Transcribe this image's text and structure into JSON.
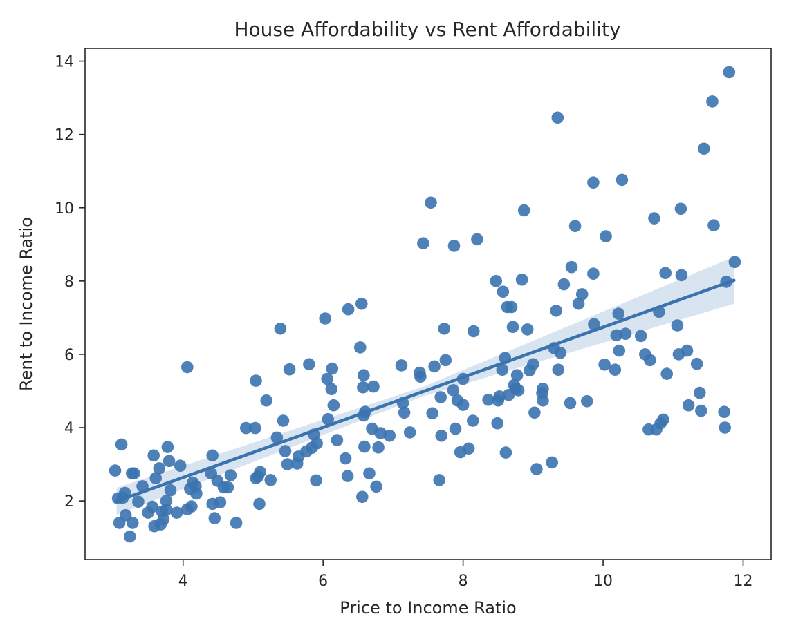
{
  "chart_data": {
    "type": "scatter",
    "title": "House Affordability vs Rent Affordability",
    "xlabel": "Price to Income Ratio",
    "ylabel": "Rent to Income Ratio",
    "xlim": [
      2.6,
      12.4
    ],
    "ylim": [
      0.4,
      14.35
    ],
    "xticks": [
      4,
      6,
      8,
      10,
      12
    ],
    "yticks": [
      2,
      4,
      6,
      8,
      10,
      12,
      14
    ],
    "grid": false,
    "point_color": "#3b73af",
    "regression_color": "#3b73af",
    "ci_color": "#c5d6ea",
    "regression": {
      "x": [
        3.05,
        11.87
      ],
      "y": [
        1.99,
        8.02
      ],
      "ci_lower": [
        1.62,
        7.38
      ],
      "ci_upper": [
        2.36,
        8.66
      ],
      "x_mid": 7.45,
      "ci_mid": [
        4.87,
        5.13
      ]
    },
    "points": [
      [
        3.03,
        2.83
      ],
      [
        3.07,
        2.07
      ],
      [
        3.09,
        1.4
      ],
      [
        3.12,
        3.54
      ],
      [
        3.14,
        2.09
      ],
      [
        3.17,
        2.22
      ],
      [
        3.18,
        1.61
      ],
      [
        3.24,
        1.03
      ],
      [
        3.27,
        2.75
      ],
      [
        3.3,
        2.75
      ],
      [
        3.28,
        1.4
      ],
      [
        3.36,
        1.98
      ],
      [
        3.42,
        2.4
      ],
      [
        3.5,
        1.68
      ],
      [
        3.56,
        1.84
      ],
      [
        3.58,
        3.24
      ],
      [
        3.61,
        2.62
      ],
      [
        3.59,
        1.31
      ],
      [
        3.66,
        2.89
      ],
      [
        3.7,
        1.71
      ],
      [
        3.72,
        1.5
      ],
      [
        3.76,
        2.0
      ],
      [
        3.78,
        3.47
      ],
      [
        3.8,
        3.09
      ],
      [
        3.82,
        2.29
      ],
      [
        3.76,
        1.76
      ],
      [
        3.68,
        1.36
      ],
      [
        3.91,
        1.68
      ],
      [
        3.96,
        2.96
      ],
      [
        4.06,
        5.65
      ],
      [
        4.06,
        1.77
      ],
      [
        4.1,
        2.33
      ],
      [
        4.14,
        2.5
      ],
      [
        4.12,
        1.85
      ],
      [
        4.19,
        2.2
      ],
      [
        4.18,
        2.4
      ],
      [
        4.4,
        2.75
      ],
      [
        4.42,
        3.24
      ],
      [
        4.42,
        1.92
      ],
      [
        4.45,
        1.53
      ],
      [
        4.49,
        2.55
      ],
      [
        4.53,
        1.96
      ],
      [
        4.58,
        2.37
      ],
      [
        4.64,
        2.37
      ],
      [
        4.68,
        2.7
      ],
      [
        4.76,
        1.4
      ],
      [
        4.9,
        3.99
      ],
      [
        5.03,
        3.99
      ],
      [
        5.04,
        5.28
      ],
      [
        5.04,
        2.62
      ],
      [
        5.07,
        2.67
      ],
      [
        5.1,
        2.79
      ],
      [
        5.09,
        1.92
      ],
      [
        5.19,
        4.74
      ],
      [
        5.25,
        2.57
      ],
      [
        5.34,
        3.73
      ],
      [
        5.39,
        6.7
      ],
      [
        5.43,
        4.19
      ],
      [
        5.46,
        3.36
      ],
      [
        5.49,
        3.0
      ],
      [
        5.52,
        5.59
      ],
      [
        5.63,
        3.02
      ],
      [
        5.65,
        3.21
      ],
      [
        5.76,
        3.35
      ],
      [
        5.8,
        5.73
      ],
      [
        5.84,
        3.45
      ],
      [
        5.87,
        3.81
      ],
      [
        5.9,
        2.56
      ],
      [
        5.91,
        3.57
      ],
      [
        6.03,
        6.98
      ],
      [
        6.06,
        5.33
      ],
      [
        6.07,
        4.23
      ],
      [
        6.12,
        5.05
      ],
      [
        6.13,
        5.61
      ],
      [
        6.15,
        4.61
      ],
      [
        6.2,
        3.66
      ],
      [
        6.32,
        3.16
      ],
      [
        6.36,
        7.23
      ],
      [
        6.35,
        2.68
      ],
      [
        6.55,
        7.38
      ],
      [
        6.53,
        6.19
      ],
      [
        6.58,
        5.43
      ],
      [
        6.57,
        5.1
      ],
      [
        6.6,
        4.43
      ],
      [
        6.58,
        4.33
      ],
      [
        6.59,
        3.48
      ],
      [
        6.56,
        2.11
      ],
      [
        6.66,
        2.75
      ],
      [
        6.7,
        3.97
      ],
      [
        6.72,
        5.12
      ],
      [
        6.76,
        2.39
      ],
      [
        6.79,
        3.46
      ],
      [
        6.82,
        3.85
      ],
      [
        6.95,
        3.78
      ],
      [
        7.12,
        5.7
      ],
      [
        7.14,
        4.67
      ],
      [
        7.16,
        4.41
      ],
      [
        7.24,
        3.87
      ],
      [
        7.38,
        5.5
      ],
      [
        7.39,
        5.39
      ],
      [
        7.43,
        9.03
      ],
      [
        7.54,
        10.14
      ],
      [
        7.56,
        4.39
      ],
      [
        7.59,
        5.67
      ],
      [
        7.66,
        2.57
      ],
      [
        7.69,
        3.78
      ],
      [
        7.68,
        4.83
      ],
      [
        7.73,
        6.7
      ],
      [
        7.75,
        5.84
      ],
      [
        7.87,
        8.96
      ],
      [
        7.86,
        5.02
      ],
      [
        7.89,
        3.97
      ],
      [
        7.92,
        4.74
      ],
      [
        7.96,
        3.33
      ],
      [
        8.0,
        4.62
      ],
      [
        8.0,
        5.33
      ],
      [
        8.08,
        3.43
      ],
      [
        8.14,
        4.19
      ],
      [
        8.15,
        6.63
      ],
      [
        8.2,
        9.14
      ],
      [
        8.36,
        4.76
      ],
      [
        8.47,
        8.0
      ],
      [
        8.49,
        4.12
      ],
      [
        8.5,
        4.74
      ],
      [
        8.52,
        4.85
      ],
      [
        8.56,
        5.58
      ],
      [
        8.57,
        7.71
      ],
      [
        8.6,
        5.9
      ],
      [
        8.61,
        3.32
      ],
      [
        8.63,
        7.29
      ],
      [
        8.65,
        4.89
      ],
      [
        8.69,
        7.29
      ],
      [
        8.71,
        6.75
      ],
      [
        8.73,
        5.16
      ],
      [
        8.75,
        5.06
      ],
      [
        8.77,
        5.43
      ],
      [
        8.79,
        5.02
      ],
      [
        8.84,
        8.04
      ],
      [
        8.87,
        9.93
      ],
      [
        8.92,
        6.68
      ],
      [
        8.95,
        5.56
      ],
      [
        9.0,
        5.73
      ],
      [
        9.02,
        4.41
      ],
      [
        9.05,
        2.87
      ],
      [
        9.13,
        4.94
      ],
      [
        9.14,
        4.74
      ],
      [
        9.14,
        5.06
      ],
      [
        9.27,
        3.05
      ],
      [
        9.3,
        6.17
      ],
      [
        9.33,
        7.19
      ],
      [
        9.35,
        12.46
      ],
      [
        9.36,
        5.58
      ],
      [
        9.39,
        6.04
      ],
      [
        9.44,
        7.91
      ],
      [
        9.53,
        4.67
      ],
      [
        9.55,
        8.38
      ],
      [
        9.6,
        9.5
      ],
      [
        9.65,
        7.38
      ],
      [
        9.7,
        7.64
      ],
      [
        9.77,
        4.72
      ],
      [
        9.86,
        10.69
      ],
      [
        9.86,
        8.2
      ],
      [
        9.87,
        6.82
      ],
      [
        10.02,
        5.72
      ],
      [
        10.04,
        9.22
      ],
      [
        10.17,
        5.58
      ],
      [
        10.19,
        6.52
      ],
      [
        10.22,
        7.11
      ],
      [
        10.23,
        6.1
      ],
      [
        10.27,
        10.76
      ],
      [
        10.32,
        6.56
      ],
      [
        10.54,
        6.5
      ],
      [
        10.6,
        6.0
      ],
      [
        10.65,
        3.95
      ],
      [
        10.67,
        5.84
      ],
      [
        10.73,
        9.71
      ],
      [
        10.76,
        3.95
      ],
      [
        10.8,
        7.16
      ],
      [
        10.82,
        4.12
      ],
      [
        10.86,
        4.22
      ],
      [
        10.89,
        8.22
      ],
      [
        10.91,
        5.47
      ],
      [
        11.06,
        6.79
      ],
      [
        11.08,
        6.0
      ],
      [
        11.11,
        9.97
      ],
      [
        11.12,
        8.16
      ],
      [
        11.2,
        6.1
      ],
      [
        11.22,
        4.61
      ],
      [
        11.34,
        5.74
      ],
      [
        11.38,
        4.95
      ],
      [
        11.4,
        4.46
      ],
      [
        11.44,
        11.61
      ],
      [
        11.56,
        12.9
      ],
      [
        11.58,
        9.52
      ],
      [
        11.73,
        4.43
      ],
      [
        11.74,
        4.0
      ],
      [
        11.76,
        7.98
      ],
      [
        11.8,
        13.7
      ],
      [
        11.88,
        8.52
      ]
    ]
  }
}
